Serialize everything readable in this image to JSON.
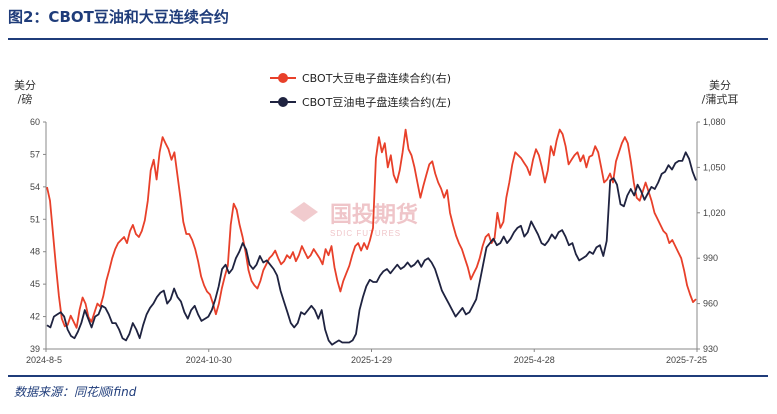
{
  "figure": {
    "title": "图2：CBOT豆油和大豆连续合约",
    "source": "数据来源：同花顺ifind"
  },
  "watermark": {
    "text": "国投期货",
    "sub": "SDIC FUTURES"
  },
  "chart_data": {
    "type": "line",
    "left_axis": {
      "unit_label_line1": "美分",
      "unit_label_line2": "/磅",
      "range": [
        39,
        60
      ],
      "ticks": [
        39,
        42,
        45,
        48,
        51,
        54,
        57,
        60
      ]
    },
    "right_axis": {
      "unit_label_line1": "美分",
      "unit_label_line2": "/蒲式耳",
      "range": [
        930,
        1080
      ],
      "ticks": [
        930,
        960,
        990,
        1020,
        1050,
        1080
      ]
    },
    "x_ticks": [
      "2024-8-5",
      "2024-10-30",
      "2025-1-29",
      "2025-4-28",
      "2025-7-25"
    ],
    "legend_position": "top-center",
    "series": [
      {
        "name": "CBOT大豆电子盘连续合约(右)",
        "axis": "right",
        "color": "#e8402a",
        "values": [
          1037,
          1028,
          1007,
          985,
          965,
          950,
          945,
          946,
          952,
          948,
          944,
          956,
          964,
          960,
          951,
          948,
          954,
          960,
          958,
          965,
          975,
          982,
          990,
          996,
          1000,
          1002,
          1004,
          1000,
          1008,
          1012,
          1006,
          1004,
          1008,
          1015,
          1028,
          1048,
          1055,
          1042,
          1060,
          1070,
          1066,
          1062,
          1055,
          1060,
          1045,
          1030,
          1014,
          1006,
          1006,
          1002,
          996,
          988,
          978,
          972,
          968,
          966,
          960,
          953,
          960,
          970,
          978,
          985,
          1012,
          1026,
          1022,
          1012,
          1004,
          994,
          982,
          975,
          972,
          970,
          975,
          982,
          986,
          990,
          992,
          995,
          990,
          986,
          988,
          992,
          990,
          994,
          988,
          992,
          998,
          994,
          990,
          992,
          996,
          993,
          990,
          986,
          996,
          992,
          998,
          984,
          975,
          968,
          975,
          980,
          985,
          992,
          998,
          1000,
          995,
          1000,
          996,
          1002,
          1010,
          1056,
          1070,
          1060,
          1066,
          1050,
          1058,
          1045,
          1040,
          1048,
          1060,
          1075,
          1062,
          1058,
          1050,
          1040,
          1030,
          1038,
          1045,
          1052,
          1054,
          1046,
          1040,
          1036,
          1030,
          1035,
          1020,
          1012,
          1005,
          1000,
          996,
          990,
          984,
          976,
          980,
          984,
          990,
          998,
          1004,
          1006,
          1000,
          1003,
          1020,
          1010,
          1014,
          1030,
          1040,
          1052,
          1060,
          1058,
          1056,
          1053,
          1050,
          1045,
          1055,
          1062,
          1058,
          1050,
          1040,
          1048,
          1064,
          1058,
          1068,
          1075,
          1072,
          1064,
          1052,
          1055,
          1058,
          1060,
          1054,
          1058,
          1050,
          1057,
          1058,
          1064,
          1060,
          1050,
          1040,
          1042,
          1046,
          1040,
          1054,
          1060,
          1066,
          1070,
          1066,
          1054,
          1040,
          1030,
          1028,
          1034,
          1040,
          1034,
          1028,
          1020,
          1016,
          1012,
          1008,
          1006,
          1000,
          1002,
          998,
          994,
          990,
          982,
          972,
          966,
          961,
          963
        ]
      },
      {
        "name": "CBOT豆油电子盘连续合约(左)",
        "axis": "left",
        "color": "#1f2340",
        "values": [
          41.2,
          41.0,
          42.0,
          42.2,
          42.4,
          42.0,
          40.8,
          40.2,
          40.0,
          40.6,
          41.4,
          42.6,
          41.8,
          41.0,
          42.0,
          42.2,
          43.0,
          42.8,
          42.2,
          41.4,
          41.4,
          40.8,
          40.0,
          39.8,
          40.4,
          41.4,
          40.8,
          40.0,
          41.2,
          42.2,
          42.8,
          43.2,
          43.8,
          44.2,
          44.4,
          43.2,
          43.6,
          44.6,
          43.8,
          43.4,
          42.4,
          41.8,
          42.6,
          43.0,
          42.2,
          41.6,
          41.8,
          42.0,
          42.6,
          43.6,
          44.8,
          46.4,
          46.8,
          46.0,
          46.4,
          47.4,
          48.0,
          48.8,
          48.2,
          46.8,
          46.4,
          46.8,
          47.6,
          47.0,
          47.2,
          46.8,
          46.4,
          45.8,
          44.4,
          43.4,
          42.4,
          41.4,
          41.0,
          41.4,
          42.4,
          42.2,
          42.6,
          43.0,
          42.6,
          41.8,
          42.6,
          40.8,
          39.8,
          39.4,
          39.6,
          39.8,
          39.6,
          39.6,
          39.6,
          39.8,
          40.4,
          42.6,
          43.8,
          44.8,
          45.4,
          45.2,
          45.2,
          45.8,
          46.2,
          46.4,
          46.0,
          46.4,
          46.8,
          46.4,
          46.6,
          47.0,
          46.6,
          46.8,
          47.2,
          46.6,
          47.2,
          47.4,
          47.0,
          46.4,
          45.4,
          44.4,
          43.8,
          43.2,
          42.6,
          42.0,
          42.4,
          42.8,
          42.2,
          42.4,
          43.0,
          43.6,
          45.2,
          46.8,
          48.4,
          48.8,
          49.2,
          48.6,
          48.8,
          49.4,
          48.8,
          49.2,
          49.8,
          50.2,
          50.4,
          49.4,
          49.8,
          50.8,
          50.2,
          49.6,
          48.8,
          48.6,
          49.0,
          49.6,
          49.2,
          49.8,
          50.0,
          49.4,
          48.6,
          48.8,
          47.8,
          47.2,
          47.4,
          47.6,
          48.0,
          47.8,
          48.4,
          48.6,
          47.6,
          49.0,
          54.6,
          54.8,
          54.2,
          52.4,
          52.2,
          53.2,
          53.8,
          53.2,
          54.2,
          53.6,
          52.8,
          53.4,
          54.0,
          53.8,
          54.4,
          55.2,
          55.4,
          56.0,
          55.6,
          56.2,
          56.4,
          56.4,
          57.2,
          56.6,
          55.4,
          54.6
        ]
      }
    ]
  }
}
